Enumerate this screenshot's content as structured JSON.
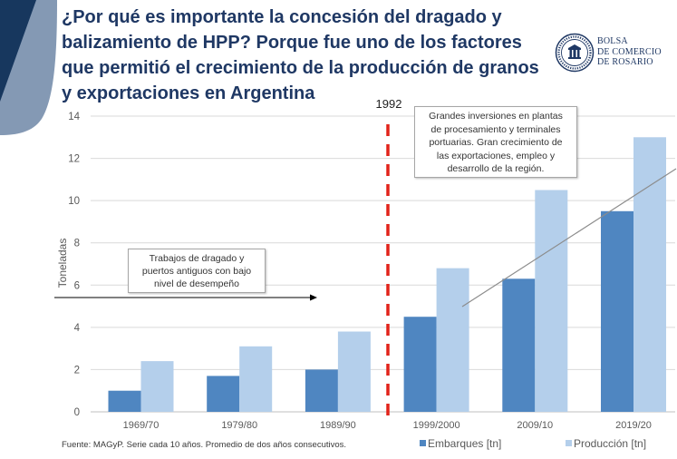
{
  "slide": {
    "title_lines": [
      "¿Por qué es importante la concesión del dragado y",
      "balizamiento de HPP? Porque fue uno de los factores",
      "que permitió el crecimiento de la producción de granos",
      "y exportaciones en Argentina"
    ],
    "logo_lines": [
      "BOLSA",
      "DE COMERCIO",
      "DE ROSARIO"
    ],
    "marker_label": "1992",
    "note_left_lines": [
      "Trabajos de dragado y",
      "puertos antiguos con bajo",
      "nivel de desempeño"
    ],
    "note_right_lines": [
      "Grandes inversiones en plantas",
      "de procesamiento y terminales",
      "portuarias. Gran crecimiento de",
      "las exportaciones, empleo y",
      "desarrollo de la región."
    ],
    "source": "Fuente: MAGyP. Serie cada 10 años. Promedio de dos años consecutivos."
  },
  "colors": {
    "title": "#1f3864",
    "logo": "#1f3864",
    "embarques": "#4f86c1",
    "produccion": "#b4cfeb",
    "marker": "#e2231a",
    "decor_dark": "#17375e",
    "decor_light": "#8499b4",
    "trend": "#8c8c8c"
  },
  "chart_data": {
    "type": "bar",
    "categories": [
      "1969/70",
      "1979/80",
      "1989/90",
      "1999/2000",
      "2009/10",
      "2019/20"
    ],
    "series": [
      {
        "name": "Embarques [tn]",
        "values": [
          1.0,
          1.7,
          2.0,
          4.5,
          6.3,
          9.5
        ]
      },
      {
        "name": "Producción [tn]",
        "values": [
          2.4,
          3.1,
          3.8,
          6.8,
          10.5,
          13.0
        ]
      }
    ],
    "ylabel": "Toneladas",
    "ylim": [
      0,
      14
    ],
    "yticks": [
      0,
      2,
      4,
      6,
      8,
      10,
      12,
      14
    ],
    "grid": true,
    "legend": "bottom-right"
  }
}
